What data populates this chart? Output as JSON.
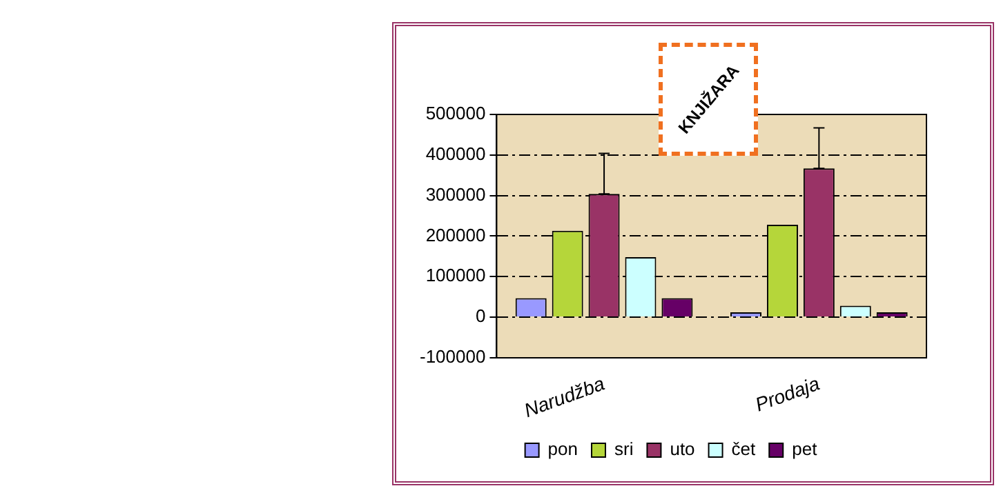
{
  "chart_data": {
    "type": "bar",
    "title": "KNJIŽARA",
    "categories": [
      "Narudžba",
      "Prodaja"
    ],
    "series": [
      {
        "name": "pon",
        "color": "#9999ff",
        "values": [
          47000,
          12000
        ]
      },
      {
        "name": "sri",
        "color": "#b5d63a",
        "values": [
          213000,
          228000
        ]
      },
      {
        "name": "uto",
        "color": "#993366",
        "values": [
          304000,
          367000
        ],
        "errors": [
          [
            304000,
            404000
          ],
          [
            367000,
            467000
          ]
        ]
      },
      {
        "name": "čet",
        "color": "#ccffff",
        "values": [
          148000,
          28000
        ]
      },
      {
        "name": "pet",
        "color": "#660066",
        "values": [
          47000,
          12000
        ]
      }
    ],
    "ylim": [
      -100000,
      500000
    ],
    "yticks": [
      -100000,
      0,
      100000,
      200000,
      300000,
      400000,
      500000
    ],
    "grid": "y",
    "legend": "bottom"
  }
}
